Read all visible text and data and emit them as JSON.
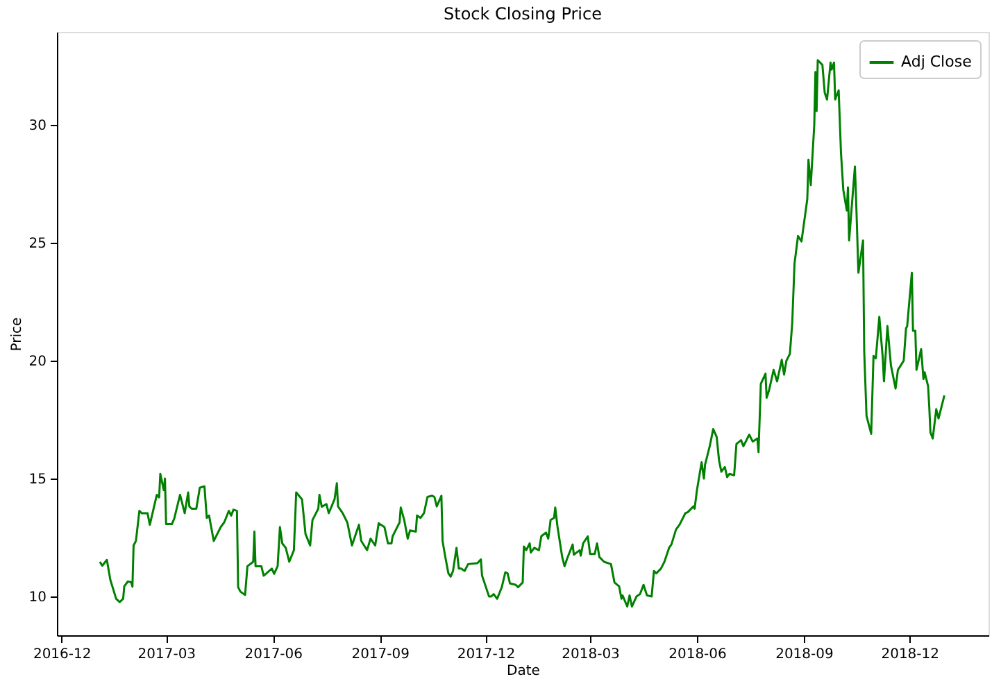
{
  "chart_data": {
    "type": "line",
    "title": "Stock Closing Price",
    "xlabel": "Date",
    "ylabel": "Price",
    "xlim": [
      "2016-11-27",
      "2019-02-07"
    ],
    "ylim": [
      8.35,
      33.95
    ],
    "xticks": [
      "2016-12",
      "2017-03",
      "2017-06",
      "2017-09",
      "2017-12",
      "2018-03",
      "2018-06",
      "2018-09",
      "2018-12"
    ],
    "yticks": [
      10,
      15,
      20,
      25,
      30
    ],
    "grid": false,
    "legend": "top right",
    "marker": "none",
    "line_style": "solid",
    "x": [
      "2017-01-03",
      "2017-01-05",
      "2017-01-09",
      "2017-01-12",
      "2017-01-17",
      "2017-01-20",
      "2017-01-23",
      "2017-01-24",
      "2017-01-27",
      "2017-01-30",
      "2017-01-31",
      "2017-02-01",
      "2017-02-03",
      "2017-02-06",
      "2017-02-08",
      "2017-02-13",
      "2017-02-15",
      "2017-02-21",
      "2017-02-23",
      "2017-02-24",
      "2017-02-27",
      "2017-02-28",
      "2017-03-01",
      "2017-03-06",
      "2017-03-08",
      "2017-03-13",
      "2017-03-15",
      "2017-03-17",
      "2017-03-20",
      "2017-03-21",
      "2017-03-23",
      "2017-03-27",
      "2017-03-30",
      "2017-04-03",
      "2017-04-05",
      "2017-04-07",
      "2017-04-11",
      "2017-04-17",
      "2017-04-20",
      "2017-04-24",
      "2017-04-26",
      "2017-04-28",
      "2017-05-01",
      "2017-05-02",
      "2017-05-04",
      "2017-05-08",
      "2017-05-10",
      "2017-05-15",
      "2017-05-16",
      "2017-05-17",
      "2017-05-22",
      "2017-05-24",
      "2017-05-31",
      "2017-06-02",
      "2017-06-05",
      "2017-06-07",
      "2017-06-09",
      "2017-06-12",
      "2017-06-15",
      "2017-06-19",
      "2017-06-21",
      "2017-06-26",
      "2017-06-29",
      "2017-07-03",
      "2017-07-05",
      "2017-07-10",
      "2017-07-11",
      "2017-07-13",
      "2017-07-17",
      "2017-07-19",
      "2017-07-24",
      "2017-07-26",
      "2017-07-27",
      "2017-07-31",
      "2017-08-04",
      "2017-08-08",
      "2017-08-14",
      "2017-08-16",
      "2017-08-21",
      "2017-08-24",
      "2017-08-28",
      "2017-08-31",
      "2017-09-05",
      "2017-09-08",
      "2017-09-11",
      "2017-09-12",
      "2017-09-18",
      "2017-09-19",
      "2017-09-22",
      "2017-09-25",
      "2017-09-27",
      "2017-10-02",
      "2017-10-03",
      "2017-10-06",
      "2017-10-09",
      "2017-10-12",
      "2017-10-16",
      "2017-10-18",
      "2017-10-20",
      "2017-10-24",
      "2017-10-25",
      "2017-10-27",
      "2017-10-30",
      "2017-11-01",
      "2017-11-03",
      "2017-11-06",
      "2017-11-08",
      "2017-11-10",
      "2017-11-13",
      "2017-11-16",
      "2017-11-24",
      "2017-11-27",
      "2017-11-28",
      "2017-11-30",
      "2017-12-04",
      "2017-12-06",
      "2017-12-08",
      "2017-12-11",
      "2017-12-15",
      "2017-12-18",
      "2017-12-20",
      "2017-12-22",
      "2017-12-27",
      "2017-12-29",
      "2018-01-02",
      "2018-01-03",
      "2018-01-05",
      "2018-01-08",
      "2018-01-09",
      "2018-01-12",
      "2018-01-16",
      "2018-01-18",
      "2018-01-22",
      "2018-01-24",
      "2018-01-26",
      "2018-01-29",
      "2018-01-30",
      "2018-02-01",
      "2018-02-05",
      "2018-02-07",
      "2018-02-09",
      "2018-02-14",
      "2018-02-15",
      "2018-02-20",
      "2018-02-21",
      "2018-02-23",
      "2018-02-27",
      "2018-03-01",
      "2018-03-05",
      "2018-03-07",
      "2018-03-09",
      "2018-03-13",
      "2018-03-19",
      "2018-03-22",
      "2018-03-26",
      "2018-03-28",
      "2018-03-29",
      "2018-04-02",
      "2018-04-04",
      "2018-04-06",
      "2018-04-10",
      "2018-04-13",
      "2018-04-16",
      "2018-04-19",
      "2018-04-23",
      "2018-04-25",
      "2018-04-27",
      "2018-05-01",
      "2018-05-04",
      "2018-05-08",
      "2018-05-10",
      "2018-05-14",
      "2018-05-17",
      "2018-05-22",
      "2018-05-24",
      "2018-05-29",
      "2018-05-30",
      "2018-06-01",
      "2018-06-05",
      "2018-06-07",
      "2018-06-08",
      "2018-06-12",
      "2018-06-15",
      "2018-06-18",
      "2018-06-20",
      "2018-06-22",
      "2018-06-25",
      "2018-06-27",
      "2018-06-29",
      "2018-07-03",
      "2018-07-05",
      "2018-07-09",
      "2018-07-11",
      "2018-07-16",
      "2018-07-19",
      "2018-07-23",
      "2018-07-24",
      "2018-07-26",
      "2018-07-30",
      "2018-07-31",
      "2018-08-02",
      "2018-08-06",
      "2018-08-09",
      "2018-08-13",
      "2018-08-15",
      "2018-08-17",
      "2018-08-20",
      "2018-08-22",
      "2018-08-24",
      "2018-08-27",
      "2018-08-30",
      "2018-09-04",
      "2018-09-05",
      "2018-09-07",
      "2018-09-10",
      "2018-09-11",
      "2018-09-12",
      "2018-09-13",
      "2018-09-17",
      "2018-09-19",
      "2018-09-21",
      "2018-09-24",
      "2018-09-25",
      "2018-09-27",
      "2018-09-28",
      "2018-10-01",
      "2018-10-03",
      "2018-10-05",
      "2018-10-08",
      "2018-10-09",
      "2018-10-10",
      "2018-10-12",
      "2018-10-15",
      "2018-10-16",
      "2018-10-18",
      "2018-10-22",
      "2018-10-23",
      "2018-10-25",
      "2018-10-29",
      "2018-10-31",
      "2018-11-02",
      "2018-11-05",
      "2018-11-08",
      "2018-11-09",
      "2018-11-12",
      "2018-11-15",
      "2018-11-19",
      "2018-11-21",
      "2018-11-26",
      "2018-11-28",
      "2018-11-29",
      "2018-12-03",
      "2018-12-04",
      "2018-12-06",
      "2018-12-07",
      "2018-12-11",
      "2018-12-13",
      "2018-12-14",
      "2018-12-17",
      "2018-12-18",
      "2018-12-19",
      "2018-12-21",
      "2018-12-24",
      "2018-12-26",
      "2018-12-31"
    ],
    "series": [
      {
        "name": "Adj Close",
        "color": "#008000",
        "values": [
          11.47,
          11.3,
          11.55,
          10.7,
          9.9,
          9.76,
          9.9,
          10.43,
          10.63,
          10.6,
          10.41,
          12.16,
          12.35,
          13.63,
          13.53,
          13.53,
          13.04,
          14.31,
          14.2,
          15.2,
          14.51,
          15.0,
          13.07,
          13.07,
          13.3,
          14.31,
          13.92,
          13.53,
          14.41,
          13.82,
          13.72,
          13.72,
          14.61,
          14.67,
          13.33,
          13.43,
          12.35,
          12.94,
          13.14,
          13.63,
          13.43,
          13.68,
          13.63,
          10.39,
          10.2,
          10.06,
          11.28,
          11.47,
          12.75,
          11.28,
          11.28,
          10.88,
          11.18,
          10.96,
          11.28,
          12.94,
          12.25,
          12.06,
          11.47,
          11.96,
          14.41,
          14.12,
          12.65,
          12.16,
          13.24,
          13.72,
          14.31,
          13.8,
          13.92,
          13.53,
          14.12,
          14.8,
          13.82,
          13.53,
          13.14,
          12.16,
          13.04,
          12.35,
          11.96,
          12.45,
          12.16,
          13.1,
          12.94,
          12.25,
          12.25,
          12.55,
          13.14,
          13.77,
          13.24,
          12.45,
          12.8,
          12.75,
          13.43,
          13.33,
          13.53,
          14.22,
          14.27,
          14.22,
          13.82,
          14.27,
          12.35,
          11.77,
          10.98,
          10.84,
          11.08,
          12.06,
          11.18,
          11.18,
          11.08,
          11.37,
          11.41,
          11.57,
          10.88,
          10.59,
          10.0,
          10.0,
          10.1,
          9.9,
          10.39,
          11.02,
          10.98,
          10.55,
          10.49,
          10.39,
          10.59,
          12.12,
          11.96,
          12.25,
          11.86,
          12.06,
          11.96,
          12.55,
          12.71,
          12.45,
          13.24,
          13.33,
          13.77,
          12.94,
          11.67,
          11.28,
          11.57,
          12.2,
          11.77,
          11.96,
          11.73,
          12.25,
          12.55,
          11.8,
          11.8,
          12.25,
          11.67,
          11.47,
          11.37,
          10.59,
          10.43,
          9.9,
          10.04,
          9.57,
          10.04,
          9.57,
          10.0,
          10.1,
          10.49,
          10.04,
          10.0,
          11.08,
          10.98,
          11.18,
          11.47,
          12.06,
          12.2,
          12.84,
          13.04,
          13.53,
          13.57,
          13.82,
          13.72,
          14.51,
          15.69,
          15.0,
          15.59,
          16.37,
          17.1,
          16.76,
          15.78,
          15.29,
          15.49,
          15.06,
          15.2,
          15.14,
          16.47,
          16.63,
          16.37,
          16.86,
          16.57,
          16.7,
          16.12,
          19.02,
          19.45,
          18.43,
          18.73,
          19.61,
          19.12,
          20.04,
          19.41,
          20.0,
          20.29,
          21.57,
          24.12,
          25.29,
          25.06,
          26.86,
          28.53,
          27.45,
          30.0,
          32.25,
          30.59,
          32.75,
          32.55,
          31.37,
          31.08,
          32.65,
          32.35,
          32.65,
          31.08,
          31.47,
          28.82,
          27.25,
          26.37,
          27.35,
          25.1,
          26.37,
          28.24,
          26.86,
          23.73,
          25.1,
          20.39,
          17.65,
          16.9,
          20.2,
          20.1,
          21.86,
          20.1,
          19.12,
          21.47,
          19.8,
          18.82,
          19.61,
          20.0,
          21.37,
          21.47,
          23.73,
          21.27,
          21.27,
          19.61,
          20.49,
          19.22,
          19.51,
          18.92,
          18.04,
          16.96,
          16.7,
          17.94,
          17.55,
          18.53
        ]
      }
    ]
  }
}
